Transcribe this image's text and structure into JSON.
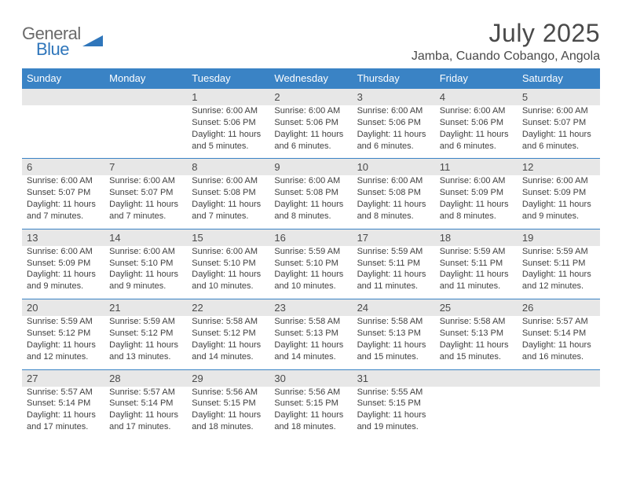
{
  "logo": {
    "word1": "General",
    "word2": "Blue",
    "color_general": "#6a6a6a",
    "color_blue": "#2f76bb",
    "shape_color": "#2f76bb"
  },
  "title": "July 2025",
  "location": "Jamba, Cuando Cobango, Angola",
  "colors": {
    "header_bg": "#3a83c5",
    "header_text": "#ffffff",
    "daynum_bg": "#e7e7e7",
    "daynum_text": "#4a4a4a",
    "rule": "#3a83c5",
    "body_text": "#3f3f3f",
    "title_text": "#4a4a4a"
  },
  "day_labels": [
    "Sunday",
    "Monday",
    "Tuesday",
    "Wednesday",
    "Thursday",
    "Friday",
    "Saturday"
  ],
  "weeks": [
    [
      null,
      null,
      {
        "n": "1",
        "sr": "Sunrise: 6:00 AM",
        "ss": "Sunset: 5:06 PM",
        "dl": "Daylight: 11 hours and 5 minutes."
      },
      {
        "n": "2",
        "sr": "Sunrise: 6:00 AM",
        "ss": "Sunset: 5:06 PM",
        "dl": "Daylight: 11 hours and 6 minutes."
      },
      {
        "n": "3",
        "sr": "Sunrise: 6:00 AM",
        "ss": "Sunset: 5:06 PM",
        "dl": "Daylight: 11 hours and 6 minutes."
      },
      {
        "n": "4",
        "sr": "Sunrise: 6:00 AM",
        "ss": "Sunset: 5:06 PM",
        "dl": "Daylight: 11 hours and 6 minutes."
      },
      {
        "n": "5",
        "sr": "Sunrise: 6:00 AM",
        "ss": "Sunset: 5:07 PM",
        "dl": "Daylight: 11 hours and 6 minutes."
      }
    ],
    [
      {
        "n": "6",
        "sr": "Sunrise: 6:00 AM",
        "ss": "Sunset: 5:07 PM",
        "dl": "Daylight: 11 hours and 7 minutes."
      },
      {
        "n": "7",
        "sr": "Sunrise: 6:00 AM",
        "ss": "Sunset: 5:07 PM",
        "dl": "Daylight: 11 hours and 7 minutes."
      },
      {
        "n": "8",
        "sr": "Sunrise: 6:00 AM",
        "ss": "Sunset: 5:08 PM",
        "dl": "Daylight: 11 hours and 7 minutes."
      },
      {
        "n": "9",
        "sr": "Sunrise: 6:00 AM",
        "ss": "Sunset: 5:08 PM",
        "dl": "Daylight: 11 hours and 8 minutes."
      },
      {
        "n": "10",
        "sr": "Sunrise: 6:00 AM",
        "ss": "Sunset: 5:08 PM",
        "dl": "Daylight: 11 hours and 8 minutes."
      },
      {
        "n": "11",
        "sr": "Sunrise: 6:00 AM",
        "ss": "Sunset: 5:09 PM",
        "dl": "Daylight: 11 hours and 8 minutes."
      },
      {
        "n": "12",
        "sr": "Sunrise: 6:00 AM",
        "ss": "Sunset: 5:09 PM",
        "dl": "Daylight: 11 hours and 9 minutes."
      }
    ],
    [
      {
        "n": "13",
        "sr": "Sunrise: 6:00 AM",
        "ss": "Sunset: 5:09 PM",
        "dl": "Daylight: 11 hours and 9 minutes."
      },
      {
        "n": "14",
        "sr": "Sunrise: 6:00 AM",
        "ss": "Sunset: 5:10 PM",
        "dl": "Daylight: 11 hours and 9 minutes."
      },
      {
        "n": "15",
        "sr": "Sunrise: 6:00 AM",
        "ss": "Sunset: 5:10 PM",
        "dl": "Daylight: 11 hours and 10 minutes."
      },
      {
        "n": "16",
        "sr": "Sunrise: 5:59 AM",
        "ss": "Sunset: 5:10 PM",
        "dl": "Daylight: 11 hours and 10 minutes."
      },
      {
        "n": "17",
        "sr": "Sunrise: 5:59 AM",
        "ss": "Sunset: 5:11 PM",
        "dl": "Daylight: 11 hours and 11 minutes."
      },
      {
        "n": "18",
        "sr": "Sunrise: 5:59 AM",
        "ss": "Sunset: 5:11 PM",
        "dl": "Daylight: 11 hours and 11 minutes."
      },
      {
        "n": "19",
        "sr": "Sunrise: 5:59 AM",
        "ss": "Sunset: 5:11 PM",
        "dl": "Daylight: 11 hours and 12 minutes."
      }
    ],
    [
      {
        "n": "20",
        "sr": "Sunrise: 5:59 AM",
        "ss": "Sunset: 5:12 PM",
        "dl": "Daylight: 11 hours and 12 minutes."
      },
      {
        "n": "21",
        "sr": "Sunrise: 5:59 AM",
        "ss": "Sunset: 5:12 PM",
        "dl": "Daylight: 11 hours and 13 minutes."
      },
      {
        "n": "22",
        "sr": "Sunrise: 5:58 AM",
        "ss": "Sunset: 5:12 PM",
        "dl": "Daylight: 11 hours and 14 minutes."
      },
      {
        "n": "23",
        "sr": "Sunrise: 5:58 AM",
        "ss": "Sunset: 5:13 PM",
        "dl": "Daylight: 11 hours and 14 minutes."
      },
      {
        "n": "24",
        "sr": "Sunrise: 5:58 AM",
        "ss": "Sunset: 5:13 PM",
        "dl": "Daylight: 11 hours and 15 minutes."
      },
      {
        "n": "25",
        "sr": "Sunrise: 5:58 AM",
        "ss": "Sunset: 5:13 PM",
        "dl": "Daylight: 11 hours and 15 minutes."
      },
      {
        "n": "26",
        "sr": "Sunrise: 5:57 AM",
        "ss": "Sunset: 5:14 PM",
        "dl": "Daylight: 11 hours and 16 minutes."
      }
    ],
    [
      {
        "n": "27",
        "sr": "Sunrise: 5:57 AM",
        "ss": "Sunset: 5:14 PM",
        "dl": "Daylight: 11 hours and 17 minutes."
      },
      {
        "n": "28",
        "sr": "Sunrise: 5:57 AM",
        "ss": "Sunset: 5:14 PM",
        "dl": "Daylight: 11 hours and 17 minutes."
      },
      {
        "n": "29",
        "sr": "Sunrise: 5:56 AM",
        "ss": "Sunset: 5:15 PM",
        "dl": "Daylight: 11 hours and 18 minutes."
      },
      {
        "n": "30",
        "sr": "Sunrise: 5:56 AM",
        "ss": "Sunset: 5:15 PM",
        "dl": "Daylight: 11 hours and 18 minutes."
      },
      {
        "n": "31",
        "sr": "Sunrise: 5:55 AM",
        "ss": "Sunset: 5:15 PM",
        "dl": "Daylight: 11 hours and 19 minutes."
      },
      null,
      null
    ]
  ]
}
